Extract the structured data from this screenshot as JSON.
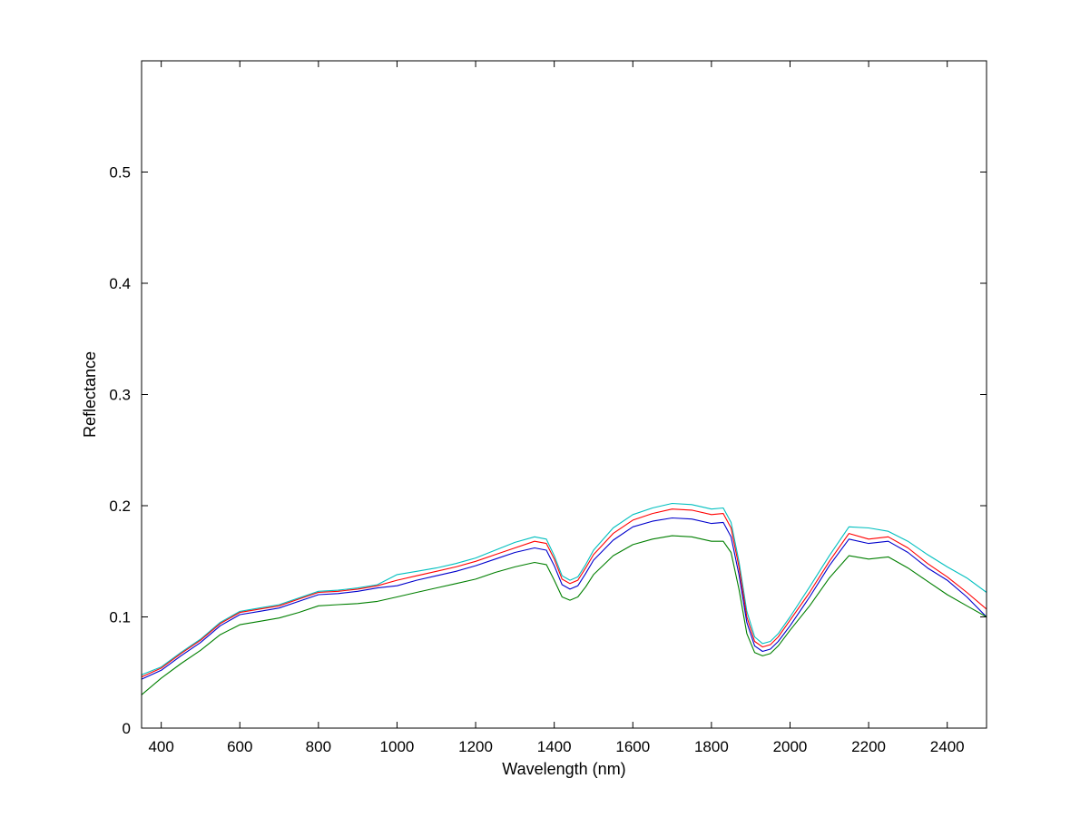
{
  "chart_data": {
    "type": "line",
    "xlabel": "Wavelength (nm)",
    "ylabel": "Reflectance",
    "xlim": [
      350,
      2500
    ],
    "ylim": [
      0,
      0.6
    ],
    "xticks": [
      400,
      600,
      800,
      1000,
      1200,
      1400,
      1600,
      1800,
      2000,
      2200,
      2400
    ],
    "yticks": [
      0,
      0.1,
      0.2,
      0.3,
      0.4,
      0.5
    ],
    "ytick_labels": [
      "0",
      "0.1",
      "0.2",
      "0.3",
      "0.4",
      "0.5"
    ],
    "grid": false,
    "x": [
      350,
      400,
      450,
      500,
      550,
      600,
      650,
      700,
      750,
      800,
      850,
      900,
      950,
      1000,
      1050,
      1100,
      1150,
      1200,
      1250,
      1300,
      1350,
      1380,
      1400,
      1420,
      1440,
      1460,
      1480,
      1500,
      1550,
      1600,
      1650,
      1700,
      1750,
      1800,
      1830,
      1850,
      1870,
      1890,
      1910,
      1930,
      1950,
      1970,
      2000,
      2050,
      2100,
      2150,
      2200,
      2250,
      2300,
      2350,
      2400,
      2450,
      2500
    ],
    "series": [
      {
        "color": "#00bfbf",
        "values": [
          0.048,
          0.055,
          0.068,
          0.08,
          0.095,
          0.105,
          0.108,
          0.111,
          0.117,
          0.123,
          0.124,
          0.126,
          0.129,
          0.138,
          0.141,
          0.144,
          0.148,
          0.153,
          0.16,
          0.167,
          0.172,
          0.17,
          0.155,
          0.137,
          0.133,
          0.136,
          0.147,
          0.16,
          0.18,
          0.192,
          0.198,
          0.202,
          0.201,
          0.197,
          0.198,
          0.185,
          0.15,
          0.105,
          0.082,
          0.076,
          0.078,
          0.085,
          0.1,
          0.127,
          0.155,
          0.181,
          0.18,
          0.177,
          0.168,
          0.156,
          0.145,
          0.135,
          0.122
        ]
      },
      {
        "color": "#ff0000",
        "values": [
          0.046,
          0.054,
          0.067,
          0.079,
          0.094,
          0.104,
          0.107,
          0.11,
          0.116,
          0.122,
          0.123,
          0.125,
          0.128,
          0.133,
          0.137,
          0.141,
          0.145,
          0.15,
          0.156,
          0.162,
          0.168,
          0.166,
          0.152,
          0.134,
          0.13,
          0.133,
          0.144,
          0.156,
          0.175,
          0.187,
          0.193,
          0.197,
          0.196,
          0.192,
          0.193,
          0.18,
          0.145,
          0.1,
          0.078,
          0.073,
          0.075,
          0.082,
          0.097,
          0.122,
          0.15,
          0.175,
          0.17,
          0.172,
          0.162,
          0.148,
          0.136,
          0.122,
          0.107
        ]
      },
      {
        "color": "#0000cc",
        "values": [
          0.044,
          0.052,
          0.065,
          0.077,
          0.092,
          0.102,
          0.105,
          0.108,
          0.114,
          0.12,
          0.121,
          0.123,
          0.126,
          0.128,
          0.133,
          0.137,
          0.141,
          0.146,
          0.152,
          0.158,
          0.162,
          0.16,
          0.146,
          0.129,
          0.125,
          0.128,
          0.139,
          0.151,
          0.169,
          0.181,
          0.186,
          0.189,
          0.188,
          0.184,
          0.185,
          0.172,
          0.138,
          0.095,
          0.074,
          0.069,
          0.071,
          0.078,
          0.092,
          0.118,
          0.146,
          0.17,
          0.166,
          0.168,
          0.158,
          0.144,
          0.133,
          0.118,
          0.1
        ]
      },
      {
        "color": "#007f00",
        "values": [
          0.03,
          0.045,
          0.058,
          0.07,
          0.084,
          0.093,
          0.096,
          0.099,
          0.104,
          0.11,
          0.111,
          0.112,
          0.114,
          0.118,
          0.122,
          0.126,
          0.13,
          0.134,
          0.14,
          0.145,
          0.149,
          0.147,
          0.133,
          0.118,
          0.115,
          0.118,
          0.127,
          0.138,
          0.155,
          0.165,
          0.17,
          0.173,
          0.172,
          0.168,
          0.168,
          0.158,
          0.125,
          0.085,
          0.068,
          0.065,
          0.067,
          0.074,
          0.088,
          0.11,
          0.135,
          0.155,
          0.152,
          0.154,
          0.144,
          0.132,
          0.12,
          0.11,
          0.1
        ]
      }
    ]
  }
}
